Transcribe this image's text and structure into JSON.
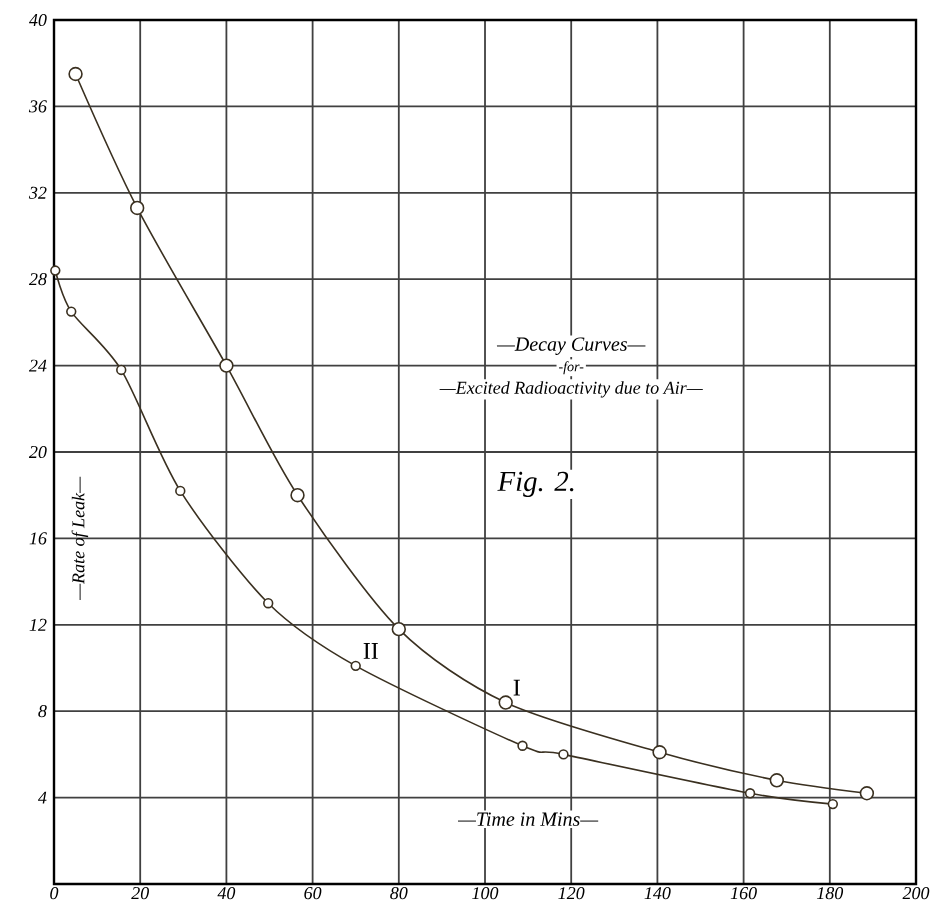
{
  "chart_data": {
    "type": "line",
    "xlabel": "—Time in Mins—",
    "ylabel": "—Rate of Leak—",
    "annotations": [
      "—Decay Curves—",
      "-for-",
      "—Excited Radioactivity due to Air—",
      "Fig. 2."
    ],
    "series": [
      {
        "name": "I",
        "color": "#3a3020",
        "x": [
          5,
          19.3,
          40,
          56.5,
          80,
          104.8,
          140.5,
          167.7,
          188.6
        ],
        "values": [
          37.5,
          31.3,
          24,
          18,
          11.8,
          8.4,
          6.1,
          4.8,
          4.2
        ]
      },
      {
        "name": "II",
        "color": "#3a3020",
        "x": [
          0.3,
          4,
          15.6,
          29.3,
          49.7,
          70,
          108.7,
          118.2,
          161.5,
          180.7
        ],
        "values": [
          28.4,
          26.5,
          23.8,
          18.2,
          13.0,
          10.1,
          6.4,
          6.0,
          4.2,
          3.7
        ]
      }
    ],
    "xlim": [
      0,
      200
    ],
    "ylim": [
      0,
      40
    ],
    "xticks": [
      0,
      20,
      40,
      60,
      80,
      100,
      120,
      140,
      160,
      180,
      200
    ],
    "yticks": [
      {
        "value": 0,
        "label": null
      },
      4,
      8,
      12,
      16,
      20,
      24,
      28,
      32,
      36,
      40
    ],
    "grid": true,
    "marker": "circle",
    "line_style": "solid"
  }
}
